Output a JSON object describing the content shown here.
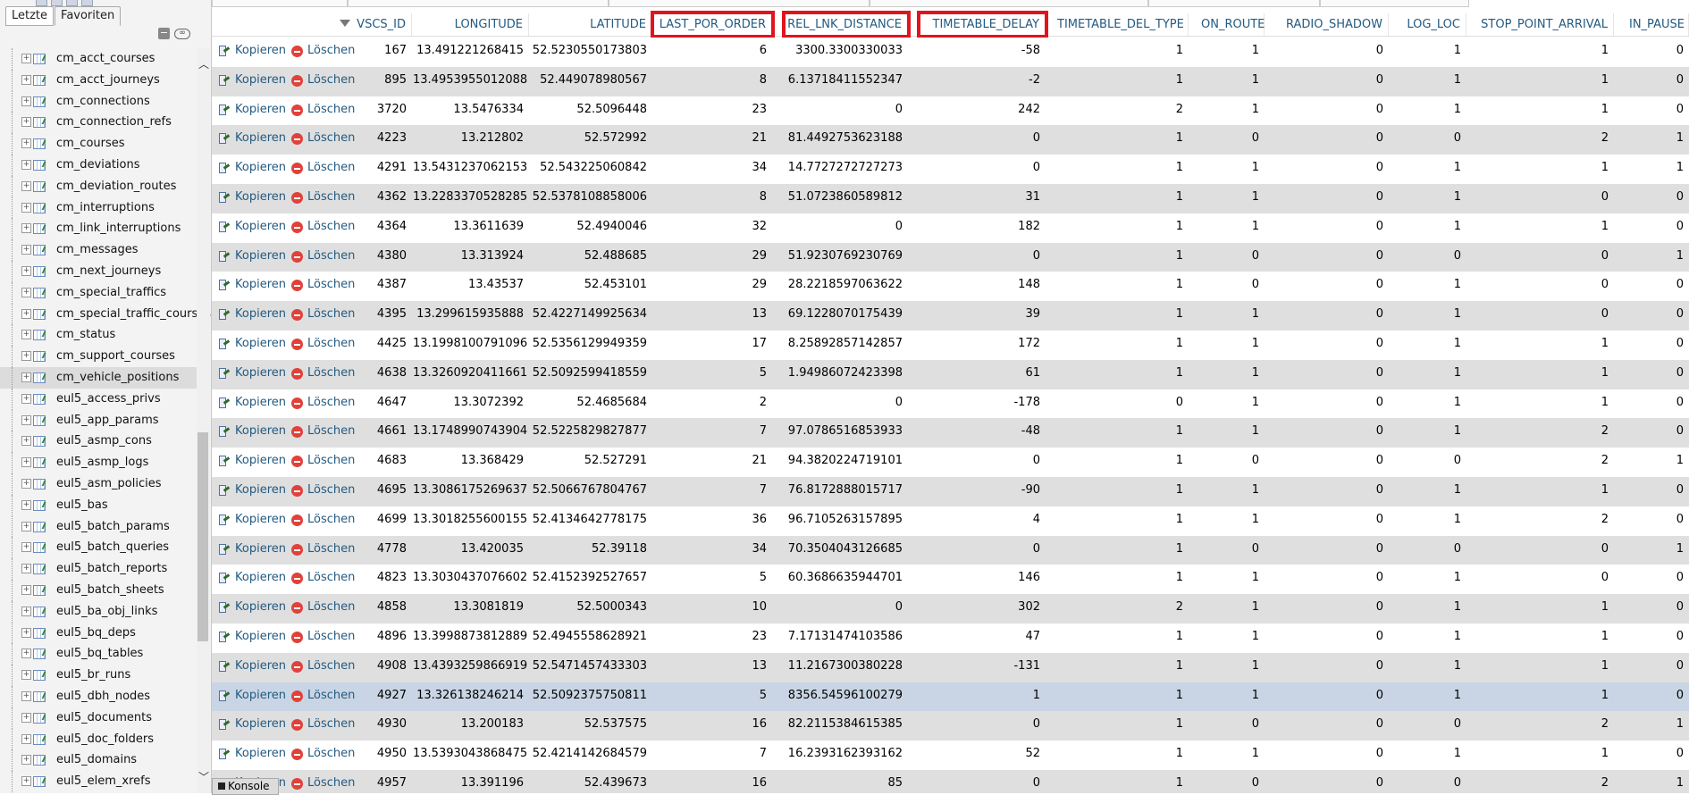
{
  "sidebar": {
    "tabs": [
      "Letzte",
      "Favoriten"
    ],
    "active_tab": "Favoriten",
    "collapse_icon": "collapse-all-icon",
    "link_icon": "link-icon",
    "selected_table": "cm_vehicle_positions",
    "tables": [
      "cm_acct_courses",
      "cm_acct_journeys",
      "cm_connections",
      "cm_connection_refs",
      "cm_courses",
      "cm_deviations",
      "cm_deviation_routes",
      "cm_interruptions",
      "cm_link_interruptions",
      "cm_messages",
      "cm_next_journeys",
      "cm_special_traffics",
      "cm_special_traffic_courses",
      "cm_status",
      "cm_support_courses",
      "cm_vehicle_positions",
      "eul5_access_privs",
      "eul5_app_params",
      "eul5_asmp_cons",
      "eul5_asmp_logs",
      "eul5_asm_policies",
      "eul5_bas",
      "eul5_batch_params",
      "eul5_batch_queries",
      "eul5_batch_reports",
      "eul5_batch_sheets",
      "eul5_ba_obj_links",
      "eul5_bq_deps",
      "eul5_bq_tables",
      "eul5_br_runs",
      "eul5_dbh_nodes",
      "eul5_documents",
      "eul5_doc_folders",
      "eul5_domains",
      "eul5_elem_xrefs"
    ]
  },
  "table": {
    "actions": {
      "copy_label": "Kopieren",
      "delete_label": "Löschen"
    },
    "columns": [
      {
        "key": "VSCS_ID",
        "label": "VSCS_ID",
        "highlight": false
      },
      {
        "key": "LONGITUDE",
        "label": "LONGITUDE",
        "highlight": false
      },
      {
        "key": "LATITUDE",
        "label": "LATITUDE",
        "highlight": false
      },
      {
        "key": "LAST_POR_ORDER",
        "label": "LAST_POR_ORDER",
        "highlight": true
      },
      {
        "key": "REL_LNK_DISTANCE",
        "label": "REL_LNK_DISTANCE",
        "highlight": true
      },
      {
        "key": "TIMETABLE_DELAY",
        "label": "TIMETABLE_DELAY",
        "highlight": true
      },
      {
        "key": "TIMETABLE_DEL_TYPE",
        "label": "TIMETABLE_DEL_TYPE",
        "highlight": false
      },
      {
        "key": "ON_ROUTE",
        "label": "ON_ROUTE",
        "highlight": false
      },
      {
        "key": "RADIO_SHADOW",
        "label": "RADIO_SHADOW",
        "highlight": false
      },
      {
        "key": "LOG_LOC",
        "label": "LOG_LOC",
        "highlight": false
      },
      {
        "key": "STOP_POINT_ARRIVAL",
        "label": "STOP_POINT_ARRIVAL",
        "highlight": false
      },
      {
        "key": "IN_PAUSE",
        "label": "IN_PAUSE",
        "highlight": false
      }
    ],
    "marked_row_index": 22,
    "rows": [
      [
        "167",
        "13.491221268415",
        "52.5230550173803",
        "6",
        "3300.3300330033",
        "-58",
        "1",
        "1",
        "0",
        "1",
        "1",
        "0"
      ],
      [
        "895",
        "13.4953955012088",
        "52.449078980567",
        "8",
        "6.13718411552347",
        "-2",
        "1",
        "1",
        "0",
        "1",
        "1",
        "0"
      ],
      [
        "3720",
        "13.5476334",
        "52.5096448",
        "23",
        "0",
        "242",
        "2",
        "1",
        "0",
        "1",
        "1",
        "0"
      ],
      [
        "4223",
        "13.212802",
        "52.572992",
        "21",
        "81.4492753623188",
        "0",
        "1",
        "0",
        "0",
        "0",
        "2",
        "1"
      ],
      [
        "4291",
        "13.5431237062153",
        "52.543225060842",
        "34",
        "14.7727272727273",
        "0",
        "1",
        "1",
        "0",
        "1",
        "1",
        "1"
      ],
      [
        "4362",
        "13.2283370528285",
        "52.5378108858006",
        "8",
        "51.0723860589812",
        "31",
        "1",
        "1",
        "0",
        "1",
        "0",
        "0"
      ],
      [
        "4364",
        "13.3611639",
        "52.4940046",
        "32",
        "0",
        "182",
        "1",
        "1",
        "0",
        "1",
        "1",
        "0"
      ],
      [
        "4380",
        "13.313924",
        "52.488685",
        "29",
        "51.9230769230769",
        "0",
        "1",
        "0",
        "0",
        "0",
        "0",
        "1"
      ],
      [
        "4387",
        "13.43537",
        "52.453101",
        "29",
        "28.2218597063622",
        "148",
        "1",
        "0",
        "0",
        "1",
        "0",
        "0"
      ],
      [
        "4395",
        "13.299615935888",
        "52.4227149925634",
        "13",
        "69.1228070175439",
        "39",
        "1",
        "1",
        "0",
        "1",
        "0",
        "0"
      ],
      [
        "4425",
        "13.1998100791096",
        "52.5356129949359",
        "17",
        "8.25892857142857",
        "172",
        "1",
        "1",
        "0",
        "1",
        "1",
        "0"
      ],
      [
        "4638",
        "13.3260920411661",
        "52.5092599418559",
        "5",
        "1.94986072423398",
        "61",
        "1",
        "1",
        "0",
        "1",
        "1",
        "0"
      ],
      [
        "4647",
        "13.3072392",
        "52.4685684",
        "2",
        "0",
        "-178",
        "0",
        "1",
        "0",
        "1",
        "1",
        "0"
      ],
      [
        "4661",
        "13.1748990743904",
        "52.5225829827877",
        "7",
        "97.0786516853933",
        "-48",
        "1",
        "1",
        "0",
        "1",
        "2",
        "0"
      ],
      [
        "4683",
        "13.368429",
        "52.527291",
        "21",
        "94.3820224719101",
        "0",
        "1",
        "0",
        "0",
        "0",
        "2",
        "1"
      ],
      [
        "4695",
        "13.3086175269637",
        "52.5066767804767",
        "7",
        "76.8172888015717",
        "-90",
        "1",
        "1",
        "0",
        "1",
        "1",
        "0"
      ],
      [
        "4699",
        "13.3018255600155",
        "52.4134642778175",
        "36",
        "96.7105263157895",
        "4",
        "1",
        "1",
        "0",
        "1",
        "2",
        "0"
      ],
      [
        "4778",
        "13.420035",
        "52.39118",
        "34",
        "70.3504043126685",
        "0",
        "1",
        "0",
        "0",
        "0",
        "0",
        "1"
      ],
      [
        "4823",
        "13.3030437076602",
        "52.4152392527657",
        "5",
        "60.3686635944701",
        "146",
        "1",
        "1",
        "0",
        "1",
        "0",
        "0"
      ],
      [
        "4858",
        "13.3081819",
        "52.5000343",
        "10",
        "0",
        "302",
        "2",
        "1",
        "0",
        "1",
        "1",
        "0"
      ],
      [
        "4896",
        "13.3998873812889",
        "52.4945558628921",
        "23",
        "7.17131474103586",
        "47",
        "1",
        "1",
        "0",
        "1",
        "1",
        "0"
      ],
      [
        "4908",
        "13.4393259866919",
        "52.5471457433303",
        "13",
        "11.2167300380228",
        "-131",
        "1",
        "1",
        "0",
        "1",
        "1",
        "0"
      ],
      [
        "4927",
        "13.326138246214",
        "52.5092375750811",
        "5",
        "8356.54596100279",
        "1",
        "1",
        "1",
        "0",
        "1",
        "1",
        "0"
      ],
      [
        "4930",
        "13.200183",
        "52.537575",
        "16",
        "82.2115384615385",
        "0",
        "1",
        "0",
        "0",
        "0",
        "2",
        "1"
      ],
      [
        "4950",
        "13.5393043868475",
        "52.4214142684579",
        "7",
        "16.2393162393162",
        "52",
        "1",
        "1",
        "0",
        "1",
        "1",
        "0"
      ],
      [
        "4957",
        "13.391196",
        "52.439673",
        "16",
        "85",
        "0",
        "1",
        "0",
        "0",
        "0",
        "2",
        "1"
      ]
    ]
  },
  "console": {
    "label": "Konsole"
  }
}
